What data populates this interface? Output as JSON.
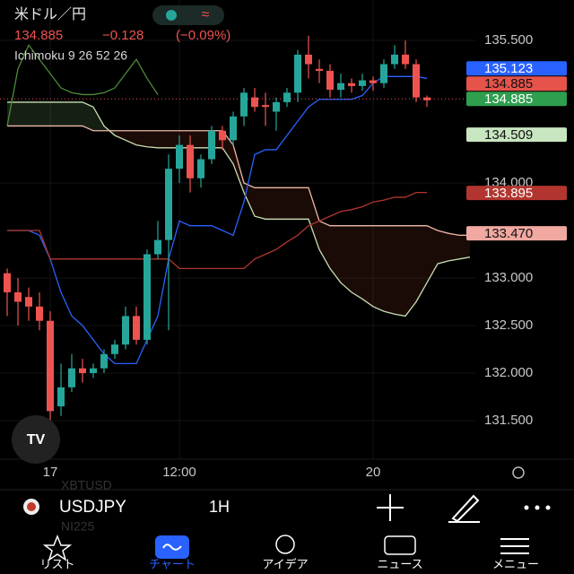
{
  "header": {
    "title": "米ドル／円",
    "last": "134.885",
    "change": "−0.128",
    "change_pct": "(−0.09%)",
    "indicator": "Ichimoku 9 26 52 26"
  },
  "chart_data": {
    "type": "candlestick",
    "categories": [
      null,
      null,
      null,
      null,
      "17",
      null,
      null,
      null,
      null,
      null,
      null,
      null,
      null,
      null,
      null,
      null,
      "12:00",
      null,
      null,
      null,
      null,
      null,
      null,
      null,
      null,
      null,
      null,
      null,
      null,
      null,
      null,
      null,
      null,
      null,
      "20",
      null,
      null,
      null,
      null,
      null,
      null,
      null,
      null,
      null
    ],
    "open": [
      133.05,
      132.85,
      132.8,
      132.7,
      132.55,
      131.65,
      131.85,
      132.05,
      132.0,
      132.05,
      132.2,
      132.3,
      132.6,
      132.35,
      133.25,
      133.4,
      134.15,
      134.4,
      134.05,
      134.25,
      134.55,
      134.45,
      134.7,
      134.9,
      134.82,
      134.75,
      134.85,
      134.95,
      135.35,
      135.2,
      135.18,
      134.98,
      135.05,
      135.02,
      135.08,
      135.05,
      135.25,
      135.35,
      135.25,
      134.9,
      null,
      null,
      null,
      null
    ],
    "high": [
      133.1,
      133.0,
      132.9,
      132.85,
      132.65,
      132.1,
      132.2,
      132.15,
      132.1,
      132.25,
      132.35,
      132.7,
      132.7,
      133.3,
      133.6,
      134.3,
      134.5,
      134.5,
      134.3,
      134.6,
      134.6,
      134.75,
      135.0,
      135.0,
      134.95,
      134.9,
      135.0,
      135.4,
      135.55,
      135.3,
      135.25,
      135.15,
      135.1,
      135.15,
      135.12,
      135.3,
      135.45,
      135.5,
      135.3,
      134.92,
      null,
      null,
      null,
      null
    ],
    "low": [
      132.6,
      132.5,
      132.55,
      132.45,
      131.5,
      131.55,
      131.8,
      131.9,
      131.95,
      132.0,
      132.15,
      132.25,
      132.3,
      132.3,
      133.2,
      132.45,
      134.0,
      133.9,
      133.95,
      134.2,
      134.35,
      134.4,
      134.6,
      134.75,
      134.6,
      134.55,
      134.8,
      134.85,
      135.1,
      135.05,
      134.9,
      134.9,
      134.95,
      134.97,
      134.97,
      135.0,
      135.2,
      135.2,
      134.85,
      134.8,
      null,
      null,
      null,
      null
    ],
    "close": [
      132.85,
      132.75,
      132.7,
      132.55,
      131.6,
      131.85,
      132.05,
      132.0,
      132.05,
      132.2,
      132.3,
      132.6,
      132.35,
      133.25,
      133.4,
      134.15,
      134.4,
      134.05,
      134.25,
      134.55,
      134.45,
      134.7,
      134.95,
      134.8,
      134.8,
      134.85,
      134.95,
      135.35,
      135.25,
      135.18,
      134.98,
      135.05,
      135.02,
      135.08,
      135.05,
      135.25,
      135.35,
      135.25,
      134.9,
      134.87,
      null,
      null,
      null,
      null
    ],
    "up_color": "#26a69a",
    "down_color": "#ef5350",
    "lines": [
      {
        "color": "#2962ff",
        "values": [
          133.5,
          133.5,
          133.5,
          133.45,
          133.2,
          132.85,
          132.6,
          132.5,
          132.35,
          132.2,
          132.1,
          132.1,
          132.1,
          132.35,
          132.6,
          133.2,
          133.6,
          133.55,
          133.55,
          133.55,
          133.5,
          133.45,
          133.8,
          134.3,
          134.35,
          134.35,
          134.5,
          134.65,
          134.8,
          134.88,
          134.88,
          134.88,
          134.88,
          134.92,
          135.05,
          135.12,
          135.12,
          135.12,
          135.12,
          135.1,
          null,
          null,
          null,
          null
        ]
      },
      {
        "color": "#b2362f",
        "values": [
          133.5,
          133.5,
          133.5,
          133.5,
          133.2,
          133.2,
          133.2,
          133.2,
          133.2,
          133.2,
          133.2,
          133.2,
          133.2,
          133.2,
          133.2,
          133.2,
          133.1,
          133.1,
          133.1,
          133.1,
          133.1,
          133.1,
          133.1,
          133.2,
          133.25,
          133.3,
          133.38,
          133.45,
          133.55,
          133.6,
          133.65,
          133.7,
          133.72,
          133.75,
          133.8,
          133.82,
          133.85,
          133.85,
          133.9,
          133.9,
          null,
          null,
          null,
          null
        ]
      },
      {
        "color": "#4c8a3a",
        "values": [
          134.6,
          135.2,
          135.45,
          135.3,
          135.15,
          135.0,
          134.95,
          134.93,
          134.93,
          134.95,
          135.0,
          135.15,
          135.3,
          135.1,
          134.93,
          null,
          null,
          null,
          null,
          null,
          null,
          null,
          null,
          null,
          null,
          null,
          null,
          null,
          null,
          null,
          null,
          null,
          null,
          null,
          null,
          null,
          null,
          null,
          null,
          null,
          null,
          null,
          null,
          null
        ]
      }
    ],
    "span_a": {
      "color": "#c8e0b0",
      "values": [
        134.85,
        134.85,
        134.85,
        134.85,
        134.85,
        134.85,
        134.85,
        134.85,
        134.8,
        134.6,
        134.5,
        134.45,
        134.4,
        134.38,
        134.37,
        134.37,
        134.37,
        134.37,
        134.37,
        134.37,
        134.37,
        134.2,
        133.9,
        133.65,
        133.62,
        133.62,
        133.62,
        133.62,
        133.62,
        133.3,
        133.1,
        132.95,
        132.85,
        132.78,
        132.7,
        132.65,
        132.62,
        132.6,
        132.75,
        132.95,
        133.15,
        133.18,
        133.2,
        133.22
      ]
    },
    "span_b": {
      "color": "#f0b8a8",
      "values": [
        134.6,
        134.6,
        134.6,
        134.6,
        134.6,
        134.6,
        134.6,
        134.6,
        134.55,
        134.55,
        134.55,
        134.55,
        134.55,
        134.55,
        134.55,
        134.55,
        134.55,
        134.55,
        134.55,
        134.55,
        134.55,
        134.4,
        134.0,
        133.95,
        133.95,
        133.95,
        133.95,
        133.95,
        133.95,
        133.6,
        133.55,
        133.55,
        133.55,
        133.55,
        133.55,
        133.55,
        133.55,
        133.55,
        133.55,
        133.55,
        133.5,
        133.47,
        133.45,
        133.45
      ]
    },
    "ylim": [
      131.094,
      135.925
    ],
    "yticks": [
      {
        "value": 135.5,
        "label": "135.500"
      },
      {
        "value": 134,
        "label": "134.000"
      },
      {
        "value": 133,
        "label": "133.000"
      },
      {
        "value": 132.5,
        "label": "132.500"
      },
      {
        "value": 132,
        "label": "132.000"
      },
      {
        "value": 131.5,
        "label": "131.500"
      }
    ],
    "grid": true,
    "price_tags": [
      {
        "value": 135.123,
        "color": "#2962ff"
      },
      {
        "value": 134.885,
        "color": "#e5534b"
      },
      {
        "value": 134.885,
        "color": "#2e9e4f"
      },
      {
        "value": 134.509,
        "color": "#c8e6c0"
      },
      {
        "value": 133.895,
        "color": "#b2362f"
      },
      {
        "value": 133.47,
        "label": "133.470",
        "color": "#f0a8a0"
      }
    ],
    "last_price_line": 134.885
  },
  "symbol_bar": {
    "symbol": "USDJPY",
    "interval": "1H",
    "prev_symbol": "XBTUSD",
    "next_symbol": "NI225"
  },
  "tab_bar": {
    "tabs": [
      "リスト",
      "チャート",
      "アイデア",
      "ニュース",
      "メニュー"
    ]
  }
}
